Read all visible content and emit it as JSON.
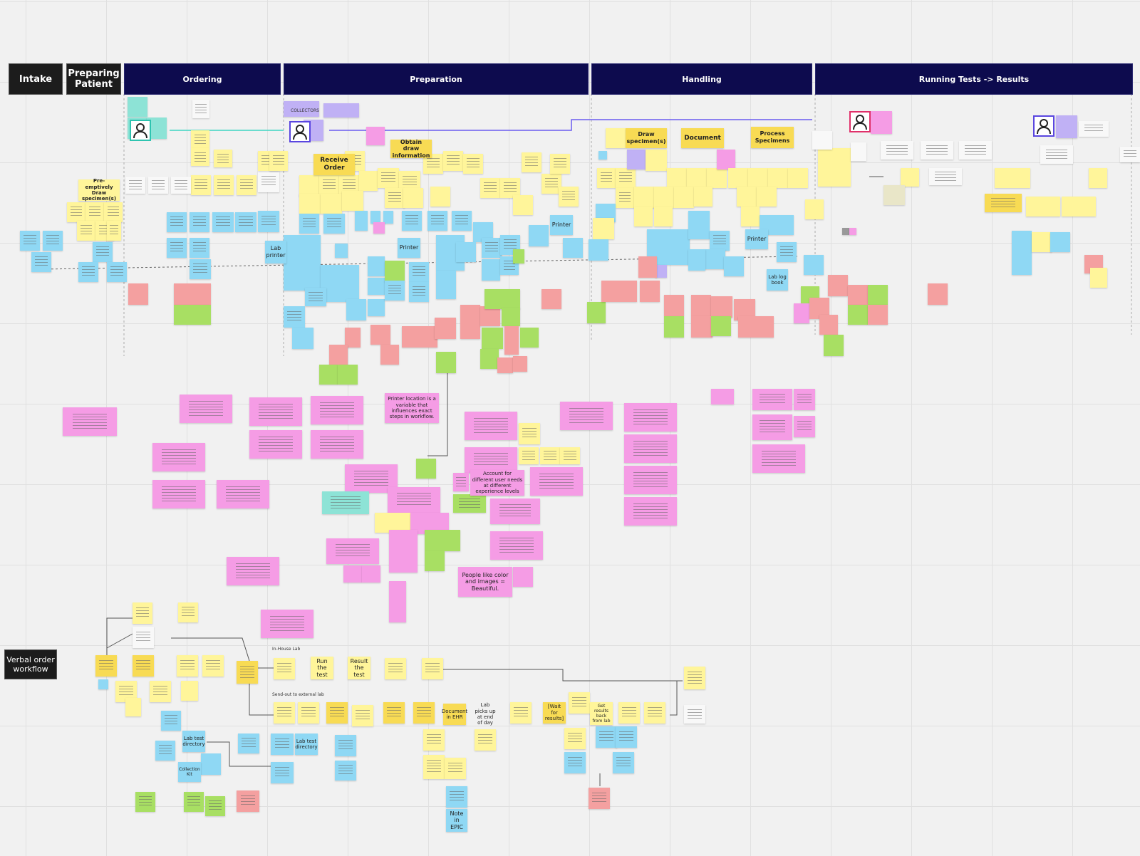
{
  "header": {
    "stages": [
      "Intake",
      "Preparing Patient",
      "Ordering",
      "Preparation",
      "Handling",
      "Running Tests -> Results"
    ]
  },
  "notes": [
    "Pre-emptively Draw specimen(s)",
    "COLLECTORS",
    "Receive Order",
    "Obtain draw information",
    "Draw specimen(s)",
    "Document",
    "Process Specimens",
    "Printer",
    "Printer",
    "Printer",
    "Lab printer",
    "Lab log book",
    "Printer location is a variable that influences exact steps in workflow.",
    "Account for different user needs at different experience levels",
    "People like color and images = Beautiful."
  ],
  "workflow": {
    "title": "Verbal order workflow",
    "sections": [
      "In-House Lab",
      "Send-out to external lab"
    ],
    "notes": [
      "Run the test",
      "Result the test",
      "Document in EHR",
      "Lab picks up at end of day",
      "[Wait for results]",
      "Get results back from lab",
      "Lab test directory",
      "Lab test directory",
      "Collection Kit",
      "Note in EPIC"
    ]
  }
}
